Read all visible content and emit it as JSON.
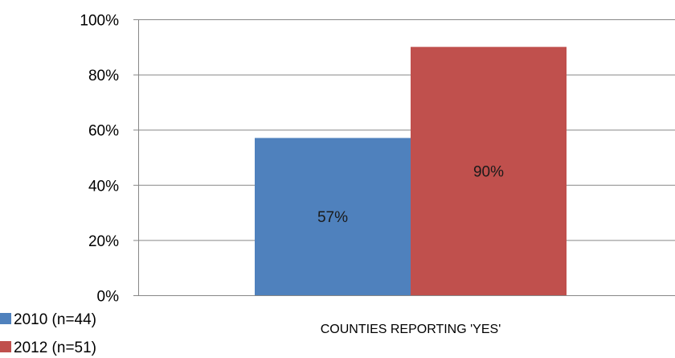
{
  "chart_data": {
    "type": "bar",
    "title": "",
    "xlabel": "",
    "ylabel": "",
    "categories": [
      "COUNTIES REPORTING 'YES'"
    ],
    "series": [
      {
        "name": "2010 (n=44)",
        "values": [
          57
        ],
        "labels": [
          "57%"
        ],
        "color": "#4F81BD"
      },
      {
        "name": "2012 (n=51)",
        "values": [
          90
        ],
        "labels": [
          "90%"
        ],
        "color": "#C0504D"
      }
    ],
    "ylim": [
      0,
      100
    ],
    "yticks": [
      0,
      20,
      40,
      60,
      80,
      100
    ],
    "ytick_labels": [
      "0%",
      "20%",
      "40%",
      "60%",
      "80%",
      "100%"
    ],
    "grid": true,
    "legend": "bottom-left"
  }
}
